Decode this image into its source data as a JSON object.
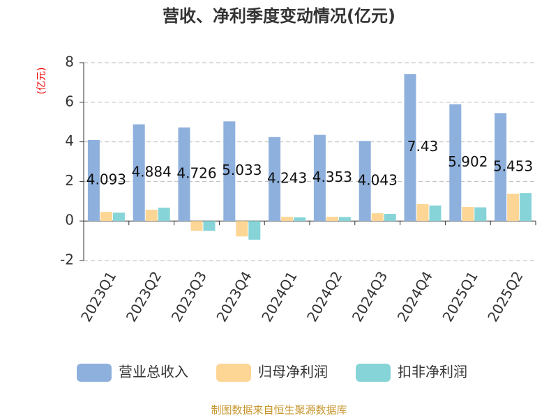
{
  "chart_data": {
    "type": "bar",
    "title": "营收、净利季度变动情况(亿元)",
    "y_label": "(亿元)",
    "source": "制图数据来自恒生聚源数据库",
    "categories": [
      "2023Q1",
      "2023Q2",
      "2023Q3",
      "2023Q4",
      "2024Q1",
      "2024Q2",
      "2024Q3",
      "2024Q4",
      "2025Q1",
      "2025Q2"
    ],
    "series": [
      {
        "name": "营业总收入",
        "color": "#8eb0dd",
        "values": [
          4.093,
          4.884,
          4.726,
          5.033,
          4.243,
          4.353,
          4.043,
          7.43,
          5.902,
          5.453
        ]
      },
      {
        "name": "归母净利润",
        "color": "#fdd696",
        "values": [
          0.46,
          0.57,
          -0.5,
          -0.78,
          0.21,
          0.21,
          0.39,
          0.85,
          0.71,
          1.38
        ]
      },
      {
        "name": "扣非净利润",
        "color": "#86d4d7",
        "values": [
          0.42,
          0.67,
          -0.5,
          -0.95,
          0.18,
          0.2,
          0.36,
          0.78,
          0.69,
          1.41
        ]
      }
    ],
    "ylim": [
      -2,
      8
    ],
    "yticks": [
      -2,
      0,
      2,
      4,
      6,
      8
    ],
    "grid": true
  }
}
